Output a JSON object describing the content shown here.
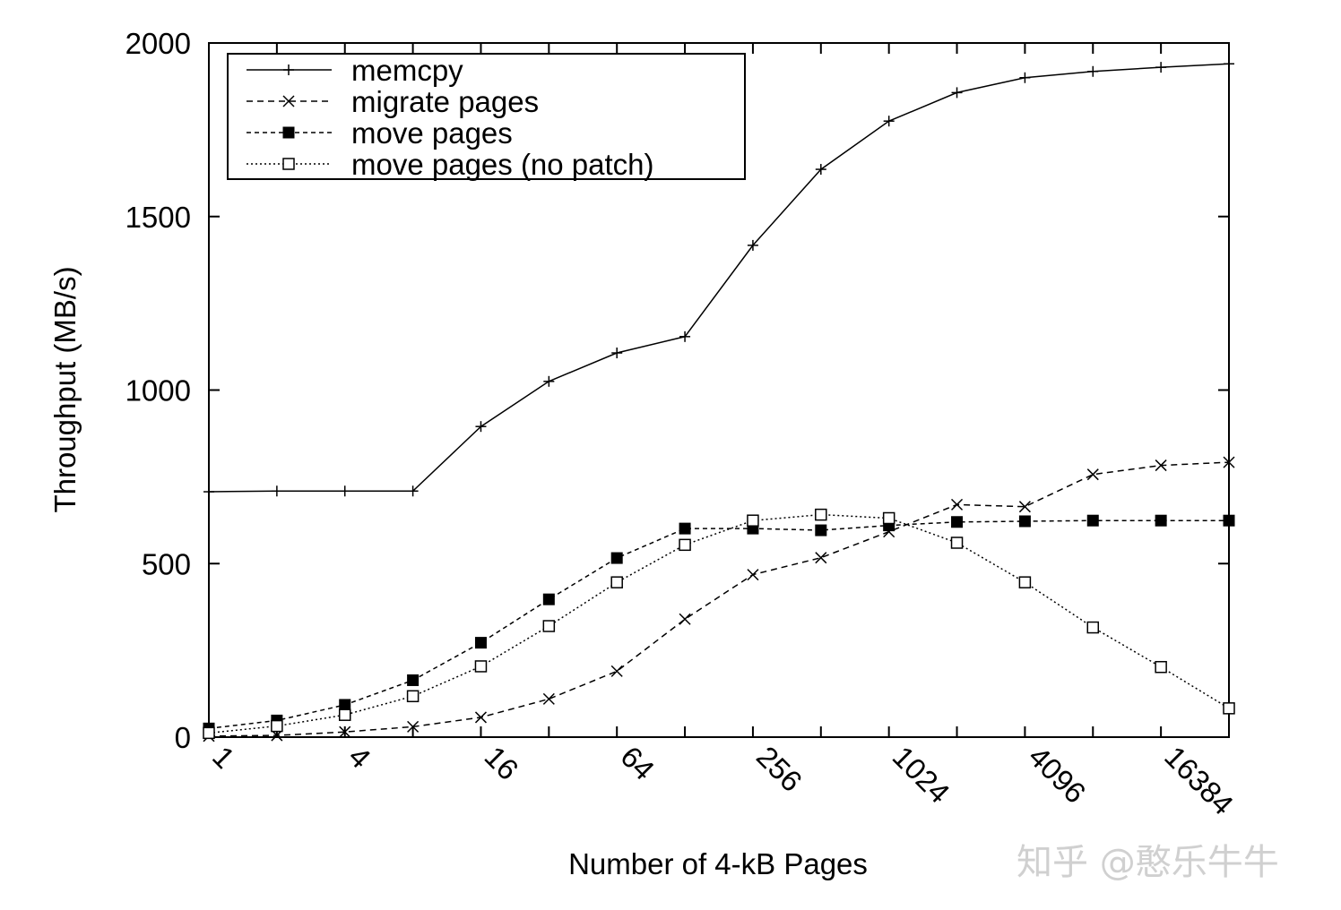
{
  "chart_data": {
    "type": "line",
    "xlabel": "Number of 4-kB Pages",
    "ylabel": "Throughput (MB/s)",
    "x_scale": "log2",
    "x": [
      1,
      2,
      4,
      8,
      16,
      32,
      64,
      128,
      256,
      512,
      1024,
      2048,
      4096,
      8192,
      16384,
      32768
    ],
    "x_tick_labels": [
      "1",
      "4",
      "16",
      "64",
      "256",
      "1024",
      "4096",
      "16384"
    ],
    "x_tick_values": [
      1,
      4,
      16,
      64,
      256,
      1024,
      4096,
      16384
    ],
    "ylim": [
      0,
      2000
    ],
    "y_ticks": [
      0,
      500,
      1000,
      1500,
      2000
    ],
    "grid": false,
    "legend_position": "top-left",
    "series": [
      {
        "name": "memcpy",
        "marker": "plus",
        "dash": "solid",
        "values": [
          707,
          709,
          709,
          709,
          895,
          1025,
          1107,
          1154,
          1417,
          1636,
          1775,
          1857,
          1900,
          1918,
          1930,
          1940
        ]
      },
      {
        "name": "migrate pages",
        "marker": "cross",
        "dash": "dashed",
        "values": [
          3,
          5,
          15,
          30,
          57,
          110,
          190,
          340,
          468,
          517,
          592,
          670,
          664,
          757,
          783,
          792
        ]
      },
      {
        "name": "move pages",
        "marker": "filled-square",
        "dash": "dashed-fine",
        "values": [
          25,
          48,
          93,
          164,
          272,
          397,
          516,
          601,
          601,
          596,
          610,
          620,
          622,
          624,
          624,
          624
        ]
      },
      {
        "name": "move pages (no patch)",
        "marker": "open-square",
        "dash": "dotted",
        "values": [
          12,
          32,
          64,
          118,
          204,
          320,
          446,
          554,
          624,
          641,
          631,
          560,
          446,
          316,
          202,
          83
        ]
      }
    ]
  },
  "watermark": "知乎 @憨乐牛牛"
}
